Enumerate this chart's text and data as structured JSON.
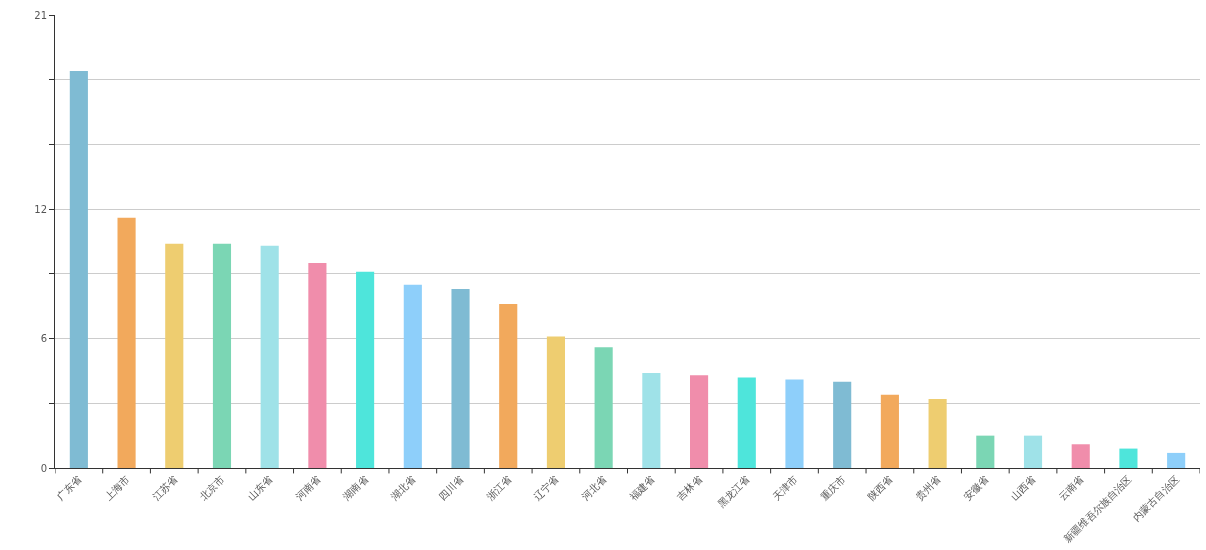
{
  "chart_data": {
    "type": "bar",
    "categories": [
      "广东省",
      "上海市",
      "江苏省",
      "北京市",
      "山东省",
      "河南省",
      "湖南省",
      "湖北省",
      "四川省",
      "浙江省",
      "辽宁省",
      "河北省",
      "福建省",
      "吉林省",
      "黑龙江省",
      "天津市",
      "重庆市",
      "陕西省",
      "贵州省",
      "安徽省",
      "山西省",
      "云南省",
      "新疆维吾尔族自治区",
      "内蒙古自治区"
    ],
    "values": [
      18.4,
      11.6,
      10.4,
      10.4,
      10.3,
      9.5,
      9.1,
      8.5,
      8.3,
      7.6,
      6.1,
      5.6,
      4.4,
      4.3,
      4.2,
      4.1,
      4.0,
      3.4,
      3.2,
      1.5,
      1.5,
      1.1,
      0.9,
      0.7
    ],
    "colors": [
      "#7fbbd3",
      "#f2a95c",
      "#eecd70",
      "#7bd6b4",
      "#9fe2e8",
      "#f08dab",
      "#4ee5db",
      "#8ecffa",
      "#7fbbd3",
      "#f2a95c",
      "#eecd70",
      "#7bd6b4",
      "#9fe2e8",
      "#f08dab",
      "#4ee5db",
      "#8ecffa",
      "#7fbbd3",
      "#f2a95c",
      "#eecd70",
      "#7bd6b4",
      "#9fe2e8",
      "#f08dab",
      "#4ee5db",
      "#8ecffa"
    ],
    "ylim": [
      0,
      21
    ],
    "yticks": [
      0,
      {
        "value": 3,
        "label": null
      },
      6,
      {
        "value": 9,
        "label": null
      },
      12,
      {
        "value": 15,
        "label": null
      },
      {
        "value": 18,
        "label": null
      },
      21
    ],
    "grid": "y"
  }
}
